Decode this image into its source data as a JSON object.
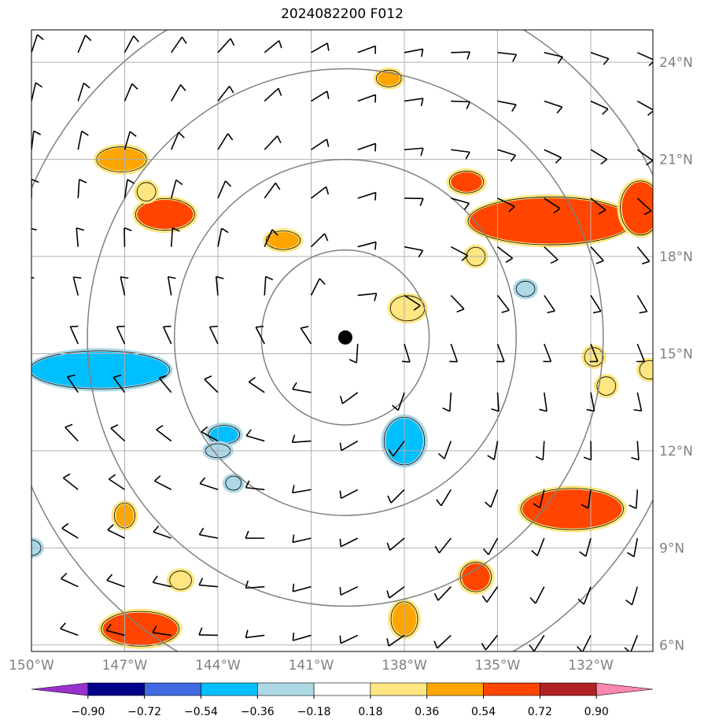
{
  "title": "2024082200 F012",
  "map": {
    "lat_range": [
      5.8,
      25.0
    ],
    "lon_range": [
      -150.0,
      -130.0
    ],
    "lat_ticks": [
      {
        "value": 24,
        "label": "24°N"
      },
      {
        "value": 21,
        "label": "21°N"
      },
      {
        "value": 18,
        "label": "18°N"
      },
      {
        "value": 15,
        "label": "15°N"
      },
      {
        "value": 12,
        "label": "12°N"
      },
      {
        "value": 9,
        "label": "9°N"
      },
      {
        "value": 6,
        "label": "6°N"
      }
    ],
    "lon_ticks": [
      {
        "value": -150,
        "label": "150°W"
      },
      {
        "value": -147,
        "label": "147°W"
      },
      {
        "value": -144,
        "label": "144°W"
      },
      {
        "value": -141,
        "label": "141°W"
      },
      {
        "value": -138,
        "label": "138°W"
      },
      {
        "value": -135,
        "label": "135°W"
      },
      {
        "value": -132,
        "label": "132°W"
      }
    ],
    "grid": true,
    "center": {
      "lon": -139.9,
      "lat": 15.5
    },
    "range_rings_deg": [
      2.7,
      5.5,
      8.3,
      11.1
    ],
    "colors": {
      "ring": "#808080",
      "grid": "#b0b0b0",
      "barb": "#000000",
      "center_marker": "#000000"
    }
  },
  "colorbar": {
    "levels": [
      "−0.90",
      "−0.72",
      "−0.54",
      "−0.36",
      "−0.18",
      "0.18",
      "0.36",
      "0.54",
      "0.72",
      "0.90"
    ],
    "colors": [
      "#9932cc",
      "#00008b",
      "#4169e1",
      "#00bfff",
      "#add8e6",
      "#ffffff",
      "#ffe680",
      "#ffa500",
      "#ff4500",
      "#b22222",
      "#ff88b0"
    ]
  },
  "features": {
    "positive": [
      {
        "lon": -147.1,
        "lat": 21.0,
        "rx": 0.75,
        "ry": 0.35,
        "level": 0.36
      },
      {
        "lon": -145.7,
        "lat": 19.3,
        "rx": 0.9,
        "ry": 0.45,
        "level": 0.54
      },
      {
        "lon": -146.3,
        "lat": 20.0,
        "rx": 0.25,
        "ry": 0.25,
        "level": 0.18
      },
      {
        "lon": -141.9,
        "lat": 18.5,
        "rx": 0.5,
        "ry": 0.25,
        "level": 0.36
      },
      {
        "lon": -138.5,
        "lat": 23.5,
        "rx": 0.35,
        "ry": 0.22,
        "level": 0.36
      },
      {
        "lon": -137.9,
        "lat": 16.4,
        "rx": 0.5,
        "ry": 0.35,
        "level": 0.18
      },
      {
        "lon": -136.0,
        "lat": 20.3,
        "rx": 0.5,
        "ry": 0.3,
        "level": 0.54
      },
      {
        "lon": -135.7,
        "lat": 18.0,
        "rx": 0.25,
        "ry": 0.25,
        "level": 0.18
      },
      {
        "lon": -133.3,
        "lat": 19.1,
        "rx": 2.6,
        "ry": 0.7,
        "level": 0.54
      },
      {
        "lon": -130.4,
        "lat": 19.5,
        "rx": 0.6,
        "ry": 0.8,
        "level": 0.54
      },
      {
        "lon": -131.9,
        "lat": 14.9,
        "rx": 0.25,
        "ry": 0.25,
        "level": 0.18
      },
      {
        "lon": -131.5,
        "lat": 14.0,
        "rx": 0.25,
        "ry": 0.25,
        "level": 0.18
      },
      {
        "lon": -130.1,
        "lat": 14.5,
        "rx": 0.28,
        "ry": 0.25,
        "level": 0.18
      },
      {
        "lon": -147.0,
        "lat": 10.0,
        "rx": 0.28,
        "ry": 0.35,
        "level": 0.36
      },
      {
        "lon": -145.2,
        "lat": 8.0,
        "rx": 0.3,
        "ry": 0.25,
        "level": 0.18
      },
      {
        "lon": -146.5,
        "lat": 6.5,
        "rx": 1.2,
        "ry": 0.5,
        "level": 0.54
      },
      {
        "lon": -138.0,
        "lat": 6.8,
        "rx": 0.38,
        "ry": 0.5,
        "level": 0.36
      },
      {
        "lon": -135.7,
        "lat": 8.1,
        "rx": 0.45,
        "ry": 0.42,
        "level": 0.54
      },
      {
        "lon": -132.6,
        "lat": 10.2,
        "rx": 1.6,
        "ry": 0.6,
        "level": 0.54
      }
    ],
    "negative": [
      {
        "lon": -147.8,
        "lat": 14.5,
        "rx": 2.2,
        "ry": 0.55,
        "level": -0.36
      },
      {
        "lon": -143.8,
        "lat": 12.5,
        "rx": 0.45,
        "ry": 0.25,
        "level": -0.36
      },
      {
        "lon": -144.0,
        "lat": 12.0,
        "rx": 0.35,
        "ry": 0.18,
        "level": -0.18
      },
      {
        "lon": -143.5,
        "lat": 11.0,
        "rx": 0.2,
        "ry": 0.18,
        "level": -0.18
      },
      {
        "lon": -138.0,
        "lat": 12.3,
        "rx": 0.6,
        "ry": 0.7,
        "level": -0.36
      },
      {
        "lon": -134.1,
        "lat": 17.0,
        "rx": 0.25,
        "ry": 0.2,
        "level": -0.18
      },
      {
        "lon": -150.0,
        "lat": 9.0,
        "rx": 0.25,
        "ry": 0.2,
        "level": -0.18
      }
    ]
  }
}
